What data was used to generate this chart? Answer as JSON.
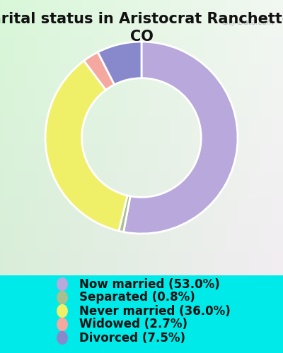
{
  "title": "Marital status in Aristocrat Ranchettes,\nCO",
  "slices": [
    53.0,
    0.8,
    36.0,
    2.7,
    7.5
  ],
  "labels": [
    "Now married (53.0%)",
    "Separated (0.8%)",
    "Never married (36.0%)",
    "Widowed (2.7%)",
    "Divorced (7.5%)"
  ],
  "colors": [
    "#b8a8dc",
    "#a8c090",
    "#f0f068",
    "#f4a8a0",
    "#8888cc"
  ],
  "background_color": "#00eaea",
  "chart_panel_color": "#d8edd8",
  "title_fontsize": 15,
  "legend_fontsize": 12,
  "donut_width": 0.38,
  "start_angle": 90,
  "watermark": "City-Data.com"
}
